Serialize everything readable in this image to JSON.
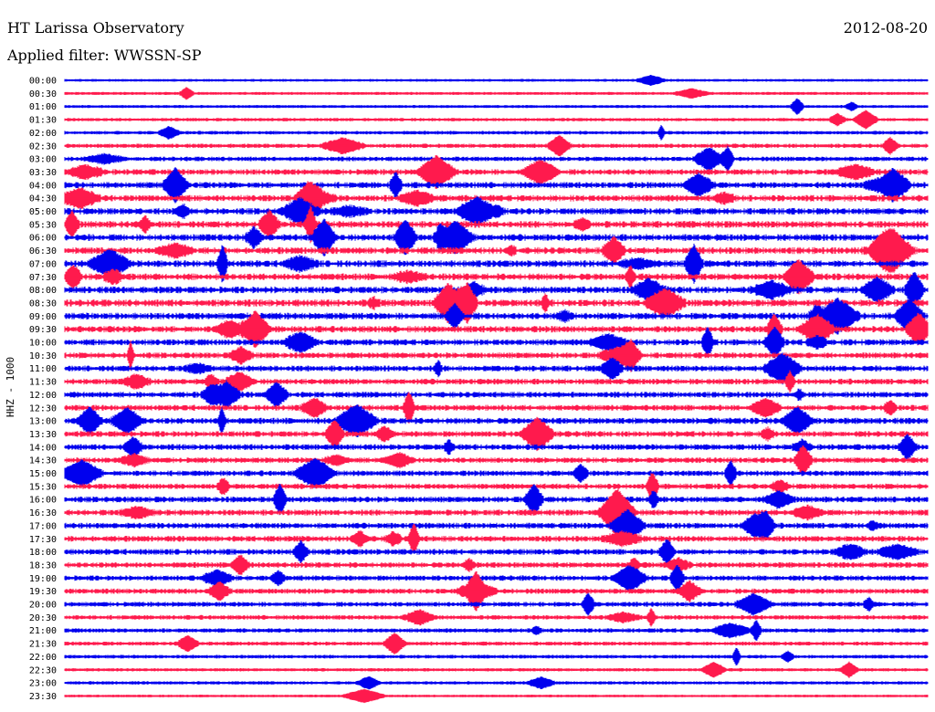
{
  "header": {
    "station": "HT Larissa Observatory",
    "date": "2012-08-20",
    "filter": "Applied filter: WWSSN-SP"
  },
  "chart_data": {
    "type": "line",
    "subtype": "helicorder",
    "title": "HT Larissa Observatory",
    "date": "2012-08-20",
    "filter": "WWSSN-SP",
    "channel_label": "HHZ - 1000",
    "trace_colors": [
      "#0000ee",
      "#ff1a4d"
    ],
    "color_cycle": "alternating by row, starting blue",
    "rows": [
      {
        "time": "00:00",
        "activity": 0.2
      },
      {
        "time": "00:30",
        "activity": 0.25
      },
      {
        "time": "01:00",
        "activity": 0.25
      },
      {
        "time": "01:30",
        "activity": 0.3
      },
      {
        "time": "02:00",
        "activity": 0.35
      },
      {
        "time": "02:30",
        "activity": 0.45
      },
      {
        "time": "03:00",
        "activity": 0.5
      },
      {
        "time": "03:30",
        "activity": 0.7
      },
      {
        "time": "04:00",
        "activity": 0.75
      },
      {
        "time": "04:30",
        "activity": 0.8
      },
      {
        "time": "05:00",
        "activity": 0.8
      },
      {
        "time": "05:30",
        "activity": 0.85
      },
      {
        "time": "06:00",
        "activity": 0.85
      },
      {
        "time": "06:30",
        "activity": 0.85
      },
      {
        "time": "07:00",
        "activity": 0.85
      },
      {
        "time": "07:30",
        "activity": 0.85
      },
      {
        "time": "08:00",
        "activity": 0.85
      },
      {
        "time": "08:30",
        "activity": 0.9
      },
      {
        "time": "09:00",
        "activity": 0.85
      },
      {
        "time": "09:30",
        "activity": 0.8
      },
      {
        "time": "10:00",
        "activity": 0.75
      },
      {
        "time": "10:30",
        "activity": 0.7
      },
      {
        "time": "11:00",
        "activity": 0.7
      },
      {
        "time": "11:30",
        "activity": 0.7
      },
      {
        "time": "12:00",
        "activity": 0.7
      },
      {
        "time": "12:30",
        "activity": 0.7
      },
      {
        "time": "13:00",
        "activity": 0.75
      },
      {
        "time": "13:30",
        "activity": 0.7
      },
      {
        "time": "14:00",
        "activity": 0.7
      },
      {
        "time": "14:30",
        "activity": 0.65
      },
      {
        "time": "15:00",
        "activity": 0.65
      },
      {
        "time": "15:30",
        "activity": 0.65
      },
      {
        "time": "16:00",
        "activity": 0.7
      },
      {
        "time": "16:30",
        "activity": 0.7
      },
      {
        "time": "17:00",
        "activity": 0.7
      },
      {
        "time": "17:30",
        "activity": 0.7
      },
      {
        "time": "18:00",
        "activity": 0.7
      },
      {
        "time": "18:30",
        "activity": 0.65
      },
      {
        "time": "19:00",
        "activity": 0.6
      },
      {
        "time": "19:30",
        "activity": 0.6
      },
      {
        "time": "20:00",
        "activity": 0.55
      },
      {
        "time": "20:30",
        "activity": 0.5
      },
      {
        "time": "21:00",
        "activity": 0.45
      },
      {
        "time": "21:30",
        "activity": 0.4
      },
      {
        "time": "22:00",
        "activity": 0.35
      },
      {
        "time": "22:30",
        "activity": 0.3
      },
      {
        "time": "23:00",
        "activity": 0.3
      },
      {
        "time": "23:30",
        "activity": 0.2
      }
    ]
  }
}
